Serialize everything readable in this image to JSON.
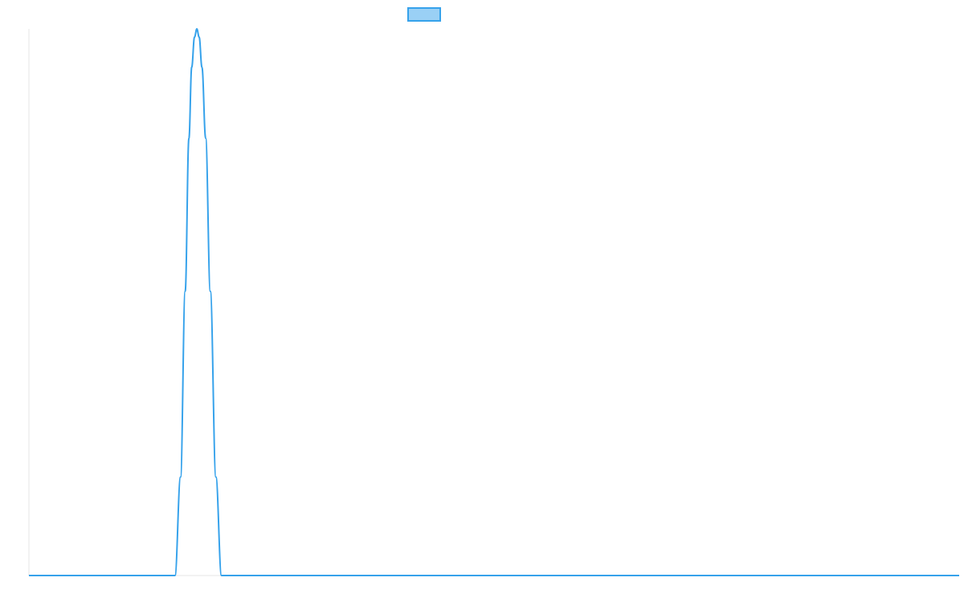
{
  "chart_data": {
    "type": "line",
    "title": "",
    "xlabel": "",
    "ylabel": "",
    "grid": false,
    "legend": {
      "placement": "top-center",
      "entries": [
        {
          "name": "",
          "swatch_fill": "#9ad0f5",
          "swatch_stroke": "#36a2eb"
        }
      ]
    },
    "xlim": [
      0,
      1
    ],
    "ylim": [
      0,
      1
    ],
    "series": [
      {
        "color": "#36a2eb",
        "x": [
          0,
          0.157,
          0.163,
          0.168,
          0.172,
          0.175,
          0.178,
          0.1805,
          0.183,
          0.186,
          0.19,
          0.195,
          0.201,
          0.207,
          1
        ],
        "y": [
          0,
          0,
          0.18,
          0.52,
          0.8,
          0.93,
          0.985,
          1.0,
          0.985,
          0.93,
          0.8,
          0.52,
          0.18,
          0,
          0
        ]
      }
    ],
    "axis_color": "#e6e6e6"
  }
}
